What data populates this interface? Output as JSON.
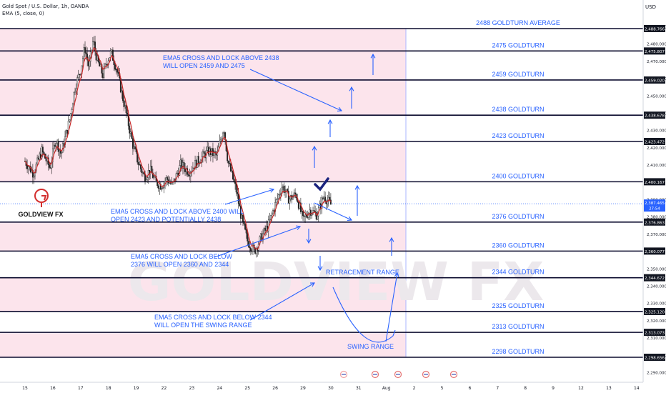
{
  "header": {
    "title": "Gold Spot / U.S. Dollar, 1h, OANDA",
    "indicator": "EMA (5, close, 0)",
    "currency": "USD"
  },
  "colors": {
    "zone": "#fce4ec",
    "line": "#0b0b2e",
    "blue": "#2962ff",
    "candle": "#1c1c1c",
    "ema": "#c62828",
    "axis_text": "#131722",
    "watermark": "#ece8ec"
  },
  "brand": {
    "name": "GOLDVIEW FX",
    "watermark": "GOLDVIEW FX"
  },
  "chart_data": {
    "type": "candlestick",
    "ylim": [
      2284,
      2494
    ],
    "y_ticks": [
      2290,
      2300,
      2310,
      2320,
      2330,
      2340,
      2350,
      2370,
      2380,
      2390,
      2410,
      2420,
      2430,
      2440,
      2450,
      2460,
      2470,
      2480,
      2490
    ],
    "x_ticks": [
      {
        "label": "15",
        "day": 0
      },
      {
        "label": "16",
        "day": 1
      },
      {
        "label": "17",
        "day": 2
      },
      {
        "label": "18",
        "day": 3
      },
      {
        "label": "19",
        "day": 4
      },
      {
        "label": "22",
        "day": 5
      },
      {
        "label": "23",
        "day": 6
      },
      {
        "label": "24",
        "day": 7
      },
      {
        "label": "25",
        "day": 8
      },
      {
        "label": "26",
        "day": 9
      },
      {
        "label": "29",
        "day": 10
      },
      {
        "label": "30",
        "day": 11
      },
      {
        "label": "31",
        "day": 12
      },
      {
        "label": "Aug",
        "day": 13
      },
      {
        "label": "2",
        "day": 14
      },
      {
        "label": "5",
        "day": 15
      },
      {
        "label": "6",
        "day": 16
      },
      {
        "label": "7",
        "day": 17
      },
      {
        "label": "8",
        "day": 18
      },
      {
        "label": "9",
        "day": 19
      },
      {
        "label": "12",
        "day": 20
      },
      {
        "label": "13",
        "day": 21
      },
      {
        "label": "14",
        "day": 22
      }
    ],
    "levels": [
      {
        "price": 2488.766,
        "label": "2488 GOLDTURN AVERAGE",
        "axis": "2,488.766"
      },
      {
        "price": 2475.807,
        "label": "2475 GOLDTURN",
        "axis": "2,475.807"
      },
      {
        "price": 2459.02,
        "label": "2459 GOLDTURN",
        "axis": "2,459.020"
      },
      {
        "price": 2438.678,
        "label": "2438 GOLDTURN",
        "axis": "2,438.678"
      },
      {
        "price": 2423.472,
        "label": "2423 GOLDTURN",
        "axis": "2,423.472"
      },
      {
        "price": 2400.167,
        "label": "2400 GOLDTURN",
        "axis": "2,400.167"
      },
      {
        "price": 2376.863,
        "label": "2376 GOLDTURN",
        "axis": "2,376.863"
      },
      {
        "price": 2360.077,
        "label": "2360 GOLDTURN",
        "axis": "2,360.077"
      },
      {
        "price": 2344.672,
        "label": "2344 GOLDTURN",
        "axis": "2,344.672"
      },
      {
        "price": 2325.12,
        "label": "2325 GOLDTURN",
        "axis": "2,325.120"
      },
      {
        "price": 2313.073,
        "label": "2313 GOLDTURN",
        "axis": "2,313.073"
      },
      {
        "price": 2298.656,
        "label": "2298 GOLDTURN",
        "axis": "2,298.656"
      }
    ],
    "current_price": {
      "price": 2387.465,
      "label": "2,387.465",
      "countdown": "27:54"
    },
    "price_path": [
      [
        0.0,
        2412
      ],
      [
        0.3,
        2405
      ],
      [
        0.6,
        2418
      ],
      [
        0.9,
        2408
      ],
      [
        1.1,
        2425
      ],
      [
        1.3,
        2416
      ],
      [
        1.6,
        2436
      ],
      [
        1.8,
        2455
      ],
      [
        2.0,
        2465
      ],
      [
        2.15,
        2478
      ],
      [
        2.3,
        2466
      ],
      [
        2.45,
        2482
      ],
      [
        2.6,
        2470
      ],
      [
        2.8,
        2462
      ],
      [
        2.95,
        2470
      ],
      [
        3.1,
        2475
      ],
      [
        3.3,
        2465
      ],
      [
        3.5,
        2450
      ],
      [
        3.7,
        2435
      ],
      [
        3.9,
        2420
      ],
      [
        4.1,
        2410
      ],
      [
        4.3,
        2403
      ],
      [
        4.5,
        2407
      ],
      [
        4.7,
        2400
      ],
      [
        4.9,
        2398
      ],
      [
        5.1,
        2402
      ],
      [
        5.3,
        2398
      ],
      [
        5.6,
        2410
      ],
      [
        5.9,
        2406
      ],
      [
        6.2,
        2412
      ],
      [
        6.6,
        2418
      ],
      [
        6.9,
        2415
      ],
      [
        7.15,
        2432
      ],
      [
        7.3,
        2412
      ],
      [
        7.6,
        2395
      ],
      [
        7.8,
        2378
      ],
      [
        8.0,
        2366
      ],
      [
        8.25,
        2360
      ],
      [
        8.5,
        2368
      ],
      [
        8.75,
        2375
      ],
      [
        9.0,
        2387
      ],
      [
        9.25,
        2398
      ],
      [
        9.5,
        2390
      ],
      [
        9.75,
        2393
      ],
      [
        10.0,
        2378
      ],
      [
        10.25,
        2384
      ],
      [
        10.5,
        2381
      ],
      [
        10.75,
        2392
      ],
      [
        11.0,
        2387
      ]
    ],
    "horizontal_zones": [
      {
        "from": 2475.807,
        "to": 2488.766
      },
      {
        "from": 2438.678,
        "to": 2475.807
      },
      {
        "from": 2400.167,
        "to": 2423.472
      },
      {
        "from": 2360.077,
        "to": 2376.863
      },
      {
        "from": 2325.12,
        "to": 2344.672
      },
      {
        "from": 2298.656,
        "to": 2313.073
      }
    ]
  },
  "annotations": {
    "note1": [
      "EMA5 CROSS AND LOCK ABOVE 2438",
      "WILL OPEN 2459 AND 2475"
    ],
    "note2": [
      "EMA5 CROSS AND LOCK ABOVE 2400 WILL",
      "OPEN 2423 AND POTENTIALLY  2438"
    ],
    "note3": [
      "EMA5 CROSS AND LOCK BELOW",
      "2376 WILL OPEN 2360 AND 2344"
    ],
    "note4": [
      "EMA5 CROSS AND LOCK BELOW 2344",
      "WILL OPEN THE SWING RANGE"
    ],
    "retracement": "RETRACEMENT RANGE",
    "swing": "SWING RANGE"
  }
}
